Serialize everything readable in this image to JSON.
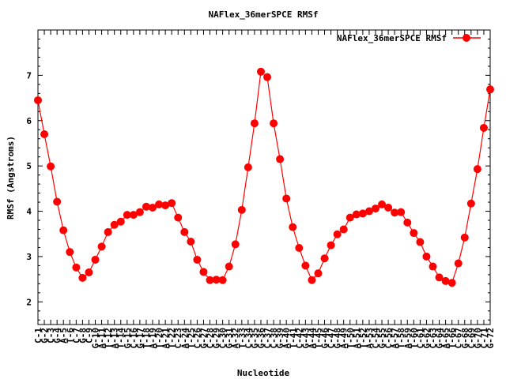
{
  "chart_data": {
    "type": "line",
    "title": "NAFlex_36merSPCE RMSf",
    "xlabel": "Nucleotide",
    "ylabel": "RMSf (Angstroms)",
    "ylim": [
      1.5,
      8.0
    ],
    "yticks": [
      2,
      3,
      4,
      5,
      6,
      7
    ],
    "grid": false,
    "legend_position": "top-right",
    "categories": [
      "C-1",
      "G-2",
      "C-3",
      "G-4",
      "A-5",
      "T-6",
      "C-7",
      "G-8",
      "C-9",
      "G-10",
      "A-11",
      "T-12",
      "A-13",
      "T-14",
      "G-15",
      "C-16",
      "G-17",
      "T-18",
      "A-19",
      "T-20",
      "A-21",
      "T-22",
      "C-23",
      "A-24",
      "T-25",
      "C-26",
      "G-27",
      "C-28",
      "G-29",
      "C-30",
      "G-31",
      "A-32",
      "T-33",
      "C-34",
      "G-35",
      "G-36",
      "C-37",
      "C-38",
      "G-39",
      "A-40",
      "T-41",
      "C-42",
      "G-43",
      "A-44",
      "T-45",
      "G-46",
      "C-47",
      "G-48",
      "A-49",
      "T-50",
      "A-51",
      "T-52",
      "A-53",
      "C-54",
      "G-55",
      "C-56",
      "A-57",
      "T-58",
      "A-59",
      "T-60",
      "C-61",
      "G-62",
      "C-63",
      "G-64",
      "A-65",
      "T-66",
      "C-67",
      "G-68",
      "C-69",
      "G-70",
      "C-71",
      "G-72"
    ],
    "series": [
      {
        "name": "NAFlex_36merSPCE RMSf",
        "color": "#ff0000",
        "values": [
          6.45,
          5.7,
          4.99,
          4.21,
          3.58,
          3.1,
          2.76,
          2.53,
          2.65,
          2.93,
          3.22,
          3.54,
          3.7,
          3.77,
          3.92,
          3.92,
          3.98,
          4.1,
          4.08,
          4.15,
          4.13,
          4.18,
          3.86,
          3.54,
          3.33,
          2.93,
          2.66,
          2.48,
          2.49,
          2.48,
          2.78,
          3.27,
          4.03,
          4.97,
          5.94,
          7.08,
          6.96,
          5.94,
          5.15,
          4.28,
          3.65,
          3.19,
          2.8,
          2.48,
          2.63,
          2.96,
          3.25,
          3.49,
          3.6,
          3.86,
          3.93,
          3.95,
          4.0,
          4.06,
          4.15,
          4.08,
          3.97,
          3.98,
          3.75,
          3.52,
          3.32,
          3.0,
          2.78,
          2.54,
          2.46,
          2.42,
          2.85,
          3.42,
          4.17,
          4.93,
          5.84,
          6.69
        ]
      }
    ]
  }
}
